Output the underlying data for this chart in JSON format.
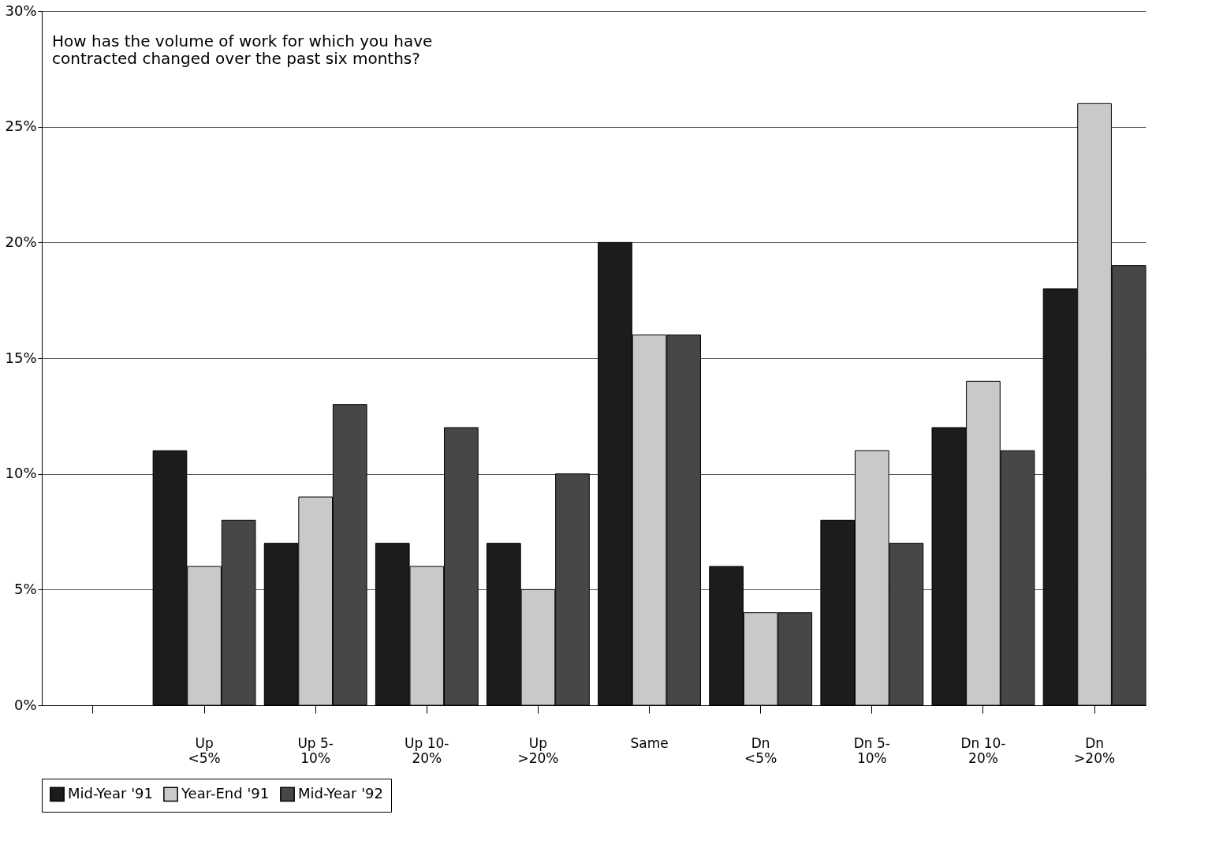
{
  "chart_data": {
    "type": "bar",
    "title": [
      "How has the volume of work for which you have",
      "contracted changed over the past six months?"
    ],
    "categories": [
      null,
      "Up\n<5%",
      "Up 5-\n10%",
      "Up 10-\n20%",
      "Up\n>20%",
      "Same",
      "Dn\n<5%",
      "Dn 5-\n10%",
      "Dn 10-\n20%",
      "Dn\n>20%"
    ],
    "series": [
      {
        "name": "Mid-Year '91",
        "color": "#1c1c1c",
        "values": [
          null,
          11,
          7,
          7,
          7,
          20,
          6,
          8,
          12,
          18
        ]
      },
      {
        "name": "Year-End '91",
        "color": "#c9c9c9",
        "values": [
          null,
          6,
          9,
          6,
          5,
          16,
          4,
          11,
          14,
          26
        ]
      },
      {
        "name": "Mid-Year '92",
        "color": "#474747",
        "values": [
          null,
          8,
          13,
          12,
          10,
          16,
          4,
          7,
          11,
          19
        ]
      }
    ],
    "ylim": [
      0,
      30
    ],
    "yticks": [
      {
        "value": 0,
        "label": "0%"
      },
      {
        "value": 5,
        "label": "5%"
      },
      {
        "value": 10,
        "label": "10%"
      },
      {
        "value": 15,
        "label": "15%"
      },
      {
        "value": 20,
        "label": "20%"
      },
      {
        "value": 25,
        "label": "25%"
      },
      {
        "value": 30,
        "label": "30%"
      }
    ],
    "grid": "y",
    "legend": "bottom"
  }
}
